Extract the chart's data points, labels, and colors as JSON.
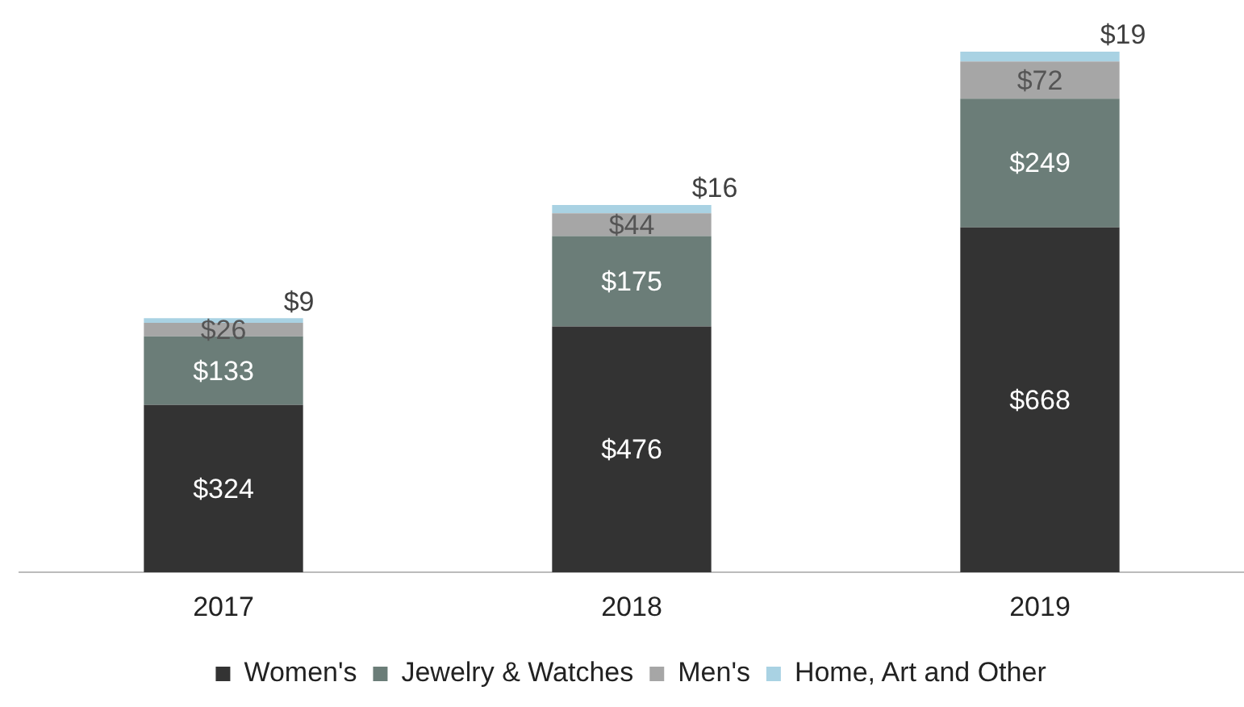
{
  "chart_data": {
    "type": "bar",
    "stacked": true,
    "categories": [
      "2017",
      "2018",
      "2019"
    ],
    "series": [
      {
        "name": "Women's",
        "color": "#333333",
        "values": [
          324,
          476,
          668
        ],
        "value_labels": [
          "$324",
          "$476",
          "$668"
        ]
      },
      {
        "name": "Jewelry & Watches",
        "color": "#6b7d78",
        "values": [
          133,
          175,
          249
        ],
        "value_labels": [
          "$133",
          "$175",
          "$249"
        ]
      },
      {
        "name": "Men's",
        "color": "#a6a6a6",
        "values": [
          26,
          44,
          72
        ],
        "value_labels": [
          "$26",
          "$44",
          "$72"
        ]
      },
      {
        "name": "Home, Art and Other",
        "color": "#a9d2e3",
        "values": [
          9,
          16,
          19
        ],
        "value_labels": [
          "$9",
          "$16",
          "$19"
        ]
      }
    ],
    "legend": "bottom",
    "grid": false,
    "tick_labels": "x"
  }
}
